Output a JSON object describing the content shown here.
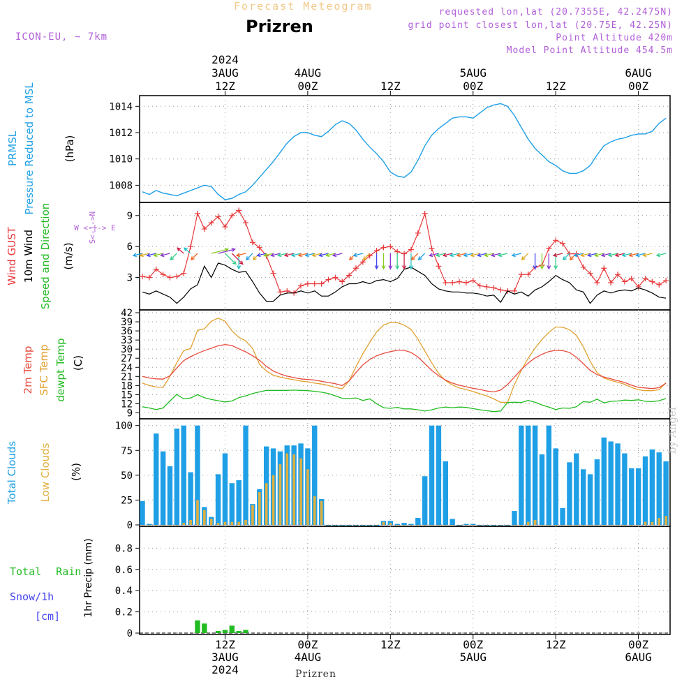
{
  "header": {
    "title": "Forecast Meteogram",
    "location": "Prizren",
    "model": "ICON-EU, ~ 7km",
    "info": [
      "requested lon,lat (20.7355E, 42.2475N)",
      "grid point closest lon,lat (20.75E, 42.25N)",
      "Point Altitude 420m",
      "Model Point Altitude 454.5m"
    ]
  },
  "footer": "Prizren",
  "watermark": "by Angel",
  "colors": {
    "pressure": "#1e9fe6",
    "gust": "#e8373a",
    "wind": "#000000",
    "temp2m": "#e84c3d",
    "sfc": "#e0a030",
    "dewpt": "#22bb22",
    "total_cloud": "#1e9fe6",
    "low_cloud": "#e0b040",
    "rain": "#22bb22",
    "snow": "#4444ee",
    "compass": "#b15fd8"
  },
  "time_axis": {
    "top_ticks": [
      {
        "hour": 12,
        "lines": [
          "2024",
          "3AUG",
          "12Z"
        ]
      },
      {
        "hour": 24,
        "lines": [
          "4AUG",
          "00Z"
        ]
      },
      {
        "hour": 36,
        "lines": [
          "12Z"
        ]
      },
      {
        "hour": 48,
        "lines": [
          "5AUG",
          "00Z"
        ]
      },
      {
        "hour": 60,
        "lines": [
          "12Z"
        ]
      },
      {
        "hour": 72,
        "lines": [
          "6AUG",
          "00Z"
        ]
      }
    ],
    "bottom_ticks": [
      {
        "hour": 12,
        "lines": [
          "12Z",
          "3AUG",
          "2024"
        ]
      },
      {
        "hour": 24,
        "lines": [
          "00Z",
          "4AUG"
        ]
      },
      {
        "hour": 36,
        "lines": [
          "12Z"
        ]
      },
      {
        "hour": 48,
        "lines": [
          "00Z",
          "5AUG"
        ]
      },
      {
        "hour": 60,
        "lines": [
          "12Z"
        ]
      },
      {
        "hour": 72,
        "lines": [
          "00Z",
          "6AUG"
        ]
      }
    ]
  },
  "chart_data": [
    {
      "type": "line",
      "panel": "pressure",
      "labels": [
        "PRMSL",
        "Pressure Reduced to MSL"
      ],
      "ylabel": "(hPa)",
      "yticks": [
        1008,
        1010,
        1012,
        1014
      ],
      "ylim": [
        1006.8,
        1014.6
      ],
      "x": [
        0,
        1,
        2,
        3,
        4,
        5,
        6,
        7,
        8,
        9,
        10,
        11,
        12,
        13,
        14,
        15,
        16,
        17,
        18,
        19,
        20,
        21,
        22,
        23,
        24,
        25,
        26,
        27,
        28,
        29,
        30,
        31,
        32,
        33,
        34,
        35,
        36,
        37,
        38,
        39,
        40,
        41,
        42,
        43,
        44,
        45,
        46,
        47,
        48,
        49,
        50,
        51,
        52,
        53,
        54,
        55,
        56,
        57,
        58,
        59,
        60,
        61,
        62,
        63,
        64,
        65,
        66,
        67,
        68,
        69,
        70,
        71,
        72,
        73,
        74,
        75,
        76
      ],
      "series": [
        {
          "values": [
            1007.5,
            1007.3,
            1007.6,
            1007.4,
            1007.3,
            1007.2,
            1007.4,
            1007.6,
            1007.8,
            1008.0,
            1007.9,
            1007.3,
            1006.9,
            1007.0,
            1007.3,
            1007.5,
            1008.0,
            1008.6,
            1009.2,
            1009.8,
            1010.5,
            1011.2,
            1011.7,
            1012.0,
            1012.0,
            1011.8,
            1011.7,
            1012.1,
            1012.6,
            1012.9,
            1012.7,
            1012.2,
            1011.5,
            1010.9,
            1010.4,
            1009.8,
            1009.0,
            1008.7,
            1008.6,
            1009.0,
            1009.9,
            1011.0,
            1011.8,
            1012.3,
            1012.7,
            1013.1,
            1013.2,
            1013.2,
            1013.1,
            1013.5,
            1013.9,
            1014.1,
            1014.2,
            1014.0,
            1013.3,
            1012.4,
            1011.5,
            1010.8,
            1010.3,
            1009.8,
            1009.5,
            1009.1,
            1008.9,
            1008.9,
            1009.1,
            1009.5,
            1010.3,
            1011.0,
            1011.3,
            1011.5,
            1011.6,
            1011.8,
            1011.9,
            1011.9,
            1012.1,
            1012.7,
            1013.1
          ]
        }
      ]
    },
    {
      "type": "line",
      "panel": "wind",
      "labels": [
        "Wind GUST",
        "10m Wind",
        "Speed and Direction"
      ],
      "ylabel": "(m/s)",
      "compass": [
        "N",
        "W <-|-> E",
        "S"
      ],
      "yticks": [
        3,
        6,
        9
      ],
      "ylim": [
        0,
        10
      ],
      "x": [
        0,
        1,
        2,
        3,
        4,
        5,
        6,
        7,
        8,
        9,
        10,
        11,
        12,
        13,
        14,
        15,
        16,
        17,
        18,
        19,
        20,
        21,
        22,
        23,
        24,
        25,
        26,
        27,
        28,
        29,
        30,
        31,
        32,
        33,
        34,
        35,
        36,
        37,
        38,
        39,
        40,
        41,
        42,
        43,
        44,
        45,
        46,
        47,
        48,
        49,
        50,
        51,
        52,
        53,
        54,
        55,
        56,
        57,
        58,
        59,
        60,
        61,
        62,
        63,
        64,
        65,
        66,
        67,
        68,
        69,
        70,
        71,
        72,
        73,
        74,
        75,
        76
      ],
      "series": [
        {
          "name": "Wind GUST",
          "values": [
            3.1,
            3.0,
            3.8,
            3.3,
            3.0,
            3.1,
            3.4,
            6.0,
            9.2,
            7.7,
            8.3,
            8.9,
            7.9,
            9.0,
            9.5,
            8.3,
            6.4,
            5.9,
            5.1,
            3.4,
            1.6,
            1.7,
            1.5,
            2.2,
            2.4,
            2.4,
            2.4,
            2.8,
            3.0,
            2.6,
            3.2,
            3.9,
            4.5,
            5.1,
            5.6,
            5.9,
            6.0,
            5.5,
            5.3,
            5.7,
            7.3,
            9.2,
            5.8,
            4.1,
            2.5,
            2.5,
            2.6,
            2.5,
            2.7,
            2.2,
            2.1,
            2.0,
            1.8,
            1.7,
            1.7,
            3.3,
            3.3,
            4.0,
            4.2,
            5.8,
            6.6,
            6.3,
            5.3,
            5.3,
            4.0,
            3.4,
            2.5,
            3.9,
            2.5,
            3.3,
            2.6,
            2.9,
            2.1,
            2.9,
            2.6,
            2.3,
            2.7
          ]
        },
        {
          "name": "10m Wind",
          "values": [
            1.6,
            1.4,
            1.7,
            1.4,
            1.1,
            0.5,
            1.1,
            1.9,
            2.3,
            4.1,
            3.0,
            4.4,
            4.2,
            3.8,
            3.5,
            3.6,
            2.6,
            1.5,
            0.7,
            0.7,
            1.3,
            1.5,
            1.5,
            1.7,
            1.5,
            1.7,
            1.2,
            1.2,
            1.6,
            2.1,
            2.4,
            2.4,
            2.6,
            2.4,
            2.7,
            2.8,
            2.6,
            2.9,
            3.8,
            4.0,
            3.6,
            3.2,
            2.4,
            1.9,
            1.7,
            1.6,
            1.6,
            1.5,
            1.5,
            1.4,
            1.2,
            1.3,
            0.6,
            1.7,
            1.4,
            1.6,
            1.2,
            1.8,
            2.1,
            2.6,
            3.2,
            2.8,
            2.5,
            1.8,
            1.6,
            0.5,
            1.3,
            1.7,
            1.5,
            1.7,
            1.8,
            1.7,
            2.0,
            1.8,
            1.5,
            1.1,
            1.0
          ]
        }
      ]
    },
    {
      "type": "line",
      "panel": "temperature",
      "labels": [
        "2m Temp",
        "SFC Temp",
        "dewpt Temp"
      ],
      "ylabel": "(C)",
      "yticks": [
        9,
        12,
        15,
        18,
        21,
        24,
        27,
        30,
        33,
        36,
        39,
        42
      ],
      "ylim": [
        7.5,
        42
      ],
      "x": [
        0,
        1,
        2,
        3,
        4,
        5,
        6,
        7,
        8,
        9,
        10,
        11,
        12,
        13,
        14,
        15,
        16,
        17,
        18,
        19,
        20,
        21,
        22,
        23,
        24,
        25,
        26,
        27,
        28,
        29,
        30,
        31,
        32,
        33,
        34,
        35,
        36,
        37,
        38,
        39,
        40,
        41,
        42,
        43,
        44,
        45,
        46,
        47,
        48,
        49,
        50,
        51,
        52,
        53,
        54,
        55,
        56,
        57,
        58,
        59,
        60,
        61,
        62,
        63,
        64,
        65,
        66,
        67,
        68,
        69,
        70,
        71,
        72,
        73,
        74,
        75,
        76
      ],
      "series": [
        {
          "name": "2m Temp",
          "values": [
            21,
            20.5,
            20.2,
            20.1,
            21.2,
            23.8,
            26.2,
            27.5,
            28.6,
            29.5,
            30.3,
            31.1,
            31.5,
            31.2,
            30.1,
            29.1,
            27.8,
            26.3,
            24.3,
            22.8,
            21.8,
            21.1,
            20.6,
            20.2,
            20.0,
            19.8,
            19.4,
            19.0,
            18.6,
            18.0,
            19.5,
            22.3,
            24.8,
            26.6,
            27.8,
            28.6,
            29.2,
            29.6,
            29.6,
            28.9,
            27.4,
            25.2,
            23.0,
            21.2,
            19.8,
            18.8,
            18.1,
            17.6,
            17.1,
            16.7,
            16.2,
            15.9,
            16.5,
            18.3,
            20.8,
            23.3,
            25.4,
            27.1,
            28.3,
            29.2,
            29.6,
            29.5,
            28.9,
            27.3,
            25.2,
            23.0,
            21.6,
            20.8,
            20.2,
            19.6,
            19.0,
            18.1,
            17.4,
            17.2,
            17.0,
            17.3,
            18.8
          ]
        },
        {
          "name": "SFC Temp",
          "values": [
            18.8,
            18.0,
            17.5,
            17.4,
            21.0,
            25.5,
            29.5,
            30.2,
            36.2,
            36.7,
            39.2,
            40.2,
            39.2,
            36.0,
            33.9,
            32.7,
            30.2,
            25.0,
            22.8,
            21.4,
            20.8,
            20.3,
            19.9,
            19.5,
            19.2,
            18.8,
            18.5,
            18.0,
            17.4,
            16.9,
            19.5,
            24.2,
            28.5,
            32.2,
            35.7,
            37.9,
            38.8,
            38.7,
            37.9,
            36.5,
            33.3,
            29.3,
            25.5,
            22.0,
            19.6,
            18.2,
            17.2,
            16.7,
            16.0,
            15.3,
            14.6,
            13.6,
            12.5,
            12.4,
            18.3,
            23.0,
            27.0,
            30.3,
            33.2,
            35.5,
            37.3,
            37.2,
            36.4,
            34.5,
            30.8,
            26.0,
            22.3,
            20.5,
            19.7,
            19.1,
            18.4,
            17.4,
            16.6,
            16.3,
            16.3,
            16.6,
            18.9
          ]
        },
        {
          "name": "dewpt Temp",
          "values": [
            11.0,
            10.6,
            10.1,
            10.6,
            12.9,
            15.1,
            13.6,
            13.9,
            15.0,
            14.0,
            13.4,
            13.0,
            12.6,
            12.9,
            14.0,
            14.6,
            15.4,
            15.9,
            16.4,
            16.4,
            16.4,
            16.4,
            16.5,
            16.4,
            16.3,
            16.1,
            15.8,
            15.4,
            14.6,
            13.8,
            13.7,
            13.9,
            13.1,
            13.6,
            12.0,
            10.7,
            10.5,
            10.8,
            10.3,
            10.3,
            10.0,
            9.6,
            10.0,
            10.6,
            10.9,
            10.7,
            10.9,
            10.8,
            10.4,
            10.0,
            9.7,
            9.4,
            9.6,
            12.4,
            12.5,
            12.4,
            13.1,
            12.5,
            11.6,
            10.9,
            10.1,
            10.6,
            10.5,
            11.0,
            12.7,
            12.5,
            13.5,
            12.3,
            12.8,
            12.9,
            13.2,
            13.1,
            13.3,
            12.8,
            12.7,
            13.0,
            13.7
          ]
        }
      ]
    },
    {
      "type": "bar",
      "panel": "clouds",
      "labels": [
        "Total Clouds",
        "Low Clouds"
      ],
      "ylabel": "(%)",
      "yticks": [
        0,
        25,
        50,
        75,
        100
      ],
      "ylim": [
        0,
        104
      ],
      "x": [
        0,
        1,
        2,
        3,
        4,
        5,
        6,
        7,
        8,
        9,
        10,
        11,
        12,
        13,
        14,
        15,
        16,
        17,
        18,
        19,
        20,
        21,
        22,
        23,
        24,
        25,
        26,
        27,
        28,
        29,
        30,
        31,
        32,
        33,
        34,
        35,
        36,
        37,
        38,
        39,
        40,
        41,
        42,
        43,
        44,
        45,
        46,
        47,
        48,
        49,
        50,
        51,
        52,
        53,
        54,
        55,
        56,
        57,
        58,
        59,
        60,
        61,
        62,
        63,
        64,
        65,
        66,
        67,
        68,
        69,
        70,
        71,
        72,
        73,
        74,
        75,
        76
      ],
      "series": [
        {
          "name": "Total Clouds",
          "values": [
            24,
            1,
            92,
            74,
            59,
            97,
            100,
            53,
            100,
            18,
            8,
            51,
            72,
            42,
            45,
            100,
            21,
            36,
            79,
            77,
            74,
            80,
            80,
            82,
            77,
            100,
            26,
            0,
            0,
            0,
            0,
            0,
            0,
            0,
            0,
            4,
            4,
            1,
            2,
            1,
            7,
            49,
            100,
            100,
            64,
            6,
            0,
            1,
            1,
            0,
            0,
            0,
            0,
            0,
            14,
            100,
            100,
            100,
            71,
            100,
            77,
            17,
            63,
            72,
            56,
            51,
            66,
            88,
            84,
            82,
            72,
            57,
            57,
            69,
            76,
            73,
            64
          ]
        },
        {
          "name": "Low Clouds",
          "values": [
            0,
            0,
            0,
            0,
            0,
            0,
            2,
            5,
            25,
            15,
            6,
            2,
            3,
            3,
            3,
            5,
            20,
            33,
            42,
            50,
            61,
            72,
            71,
            67,
            56,
            29,
            24,
            0,
            0,
            0,
            0,
            0,
            0,
            0,
            0,
            3,
            2,
            0,
            0,
            0,
            0,
            0,
            0,
            0,
            0,
            0,
            0,
            0,
            0,
            0,
            0,
            0,
            0,
            0,
            0,
            0,
            3,
            5,
            0,
            0,
            0,
            0,
            0,
            0,
            0,
            0,
            0,
            0,
            0,
            0,
            0,
            0,
            0,
            3,
            3,
            7,
            9
          ]
        }
      ]
    },
    {
      "type": "bar",
      "panel": "precip",
      "labels": [
        "Total Rain",
        "Snow/1h",
        "[cm]"
      ],
      "ylabel": "1hr Precip (mm)",
      "yticks": [
        0,
        0.2,
        0.4,
        0.6,
        0.8
      ],
      "ylim": [
        0,
        0.98
      ],
      "x": [
        8,
        9,
        11,
        12,
        13,
        14,
        15
      ],
      "series": [
        {
          "name": "Total Rain",
          "values": [
            0.12,
            0.09,
            0.02,
            0.03,
            0.07,
            0.02,
            0.03
          ]
        }
      ]
    }
  ]
}
